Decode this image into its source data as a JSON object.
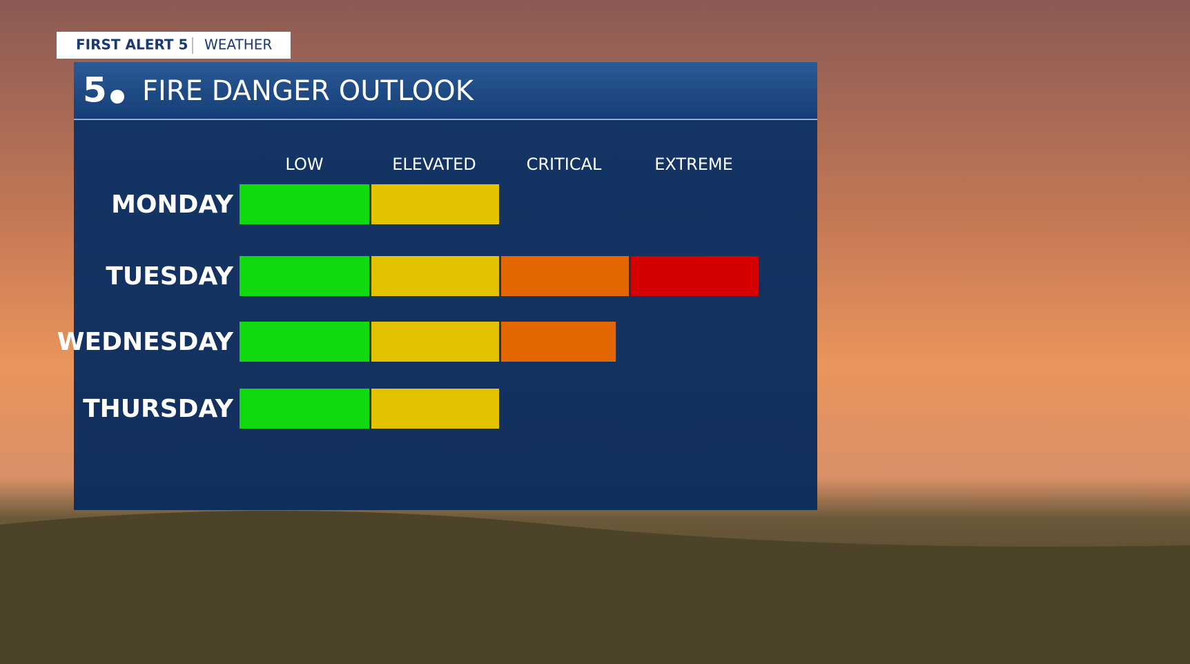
{
  "header": {
    "brand": "FIRST ALERT 5",
    "section": "WEATHER"
  },
  "chart_data": {
    "type": "segmented-bar",
    "title": "FIRE DANGER OUTLOOK",
    "categories": [
      "MONDAY",
      "TUESDAY",
      "WEDNESDAY",
      "THURSDAY"
    ],
    "values": [
      2,
      4,
      2.9,
      2
    ],
    "colors": [
      "#10d910",
      "#e3c300",
      "#e36600",
      "#d40000"
    ],
    "xlim": [
      0,
      4
    ],
    "xticks": [
      {
        "value": 0.5,
        "label": "LOW"
      },
      {
        "value": 1.5,
        "label": "ELEVATED"
      },
      {
        "value": 2.5,
        "label": "CRITICAL"
      },
      {
        "value": 3.5,
        "label": "EXTREME"
      }
    ]
  }
}
